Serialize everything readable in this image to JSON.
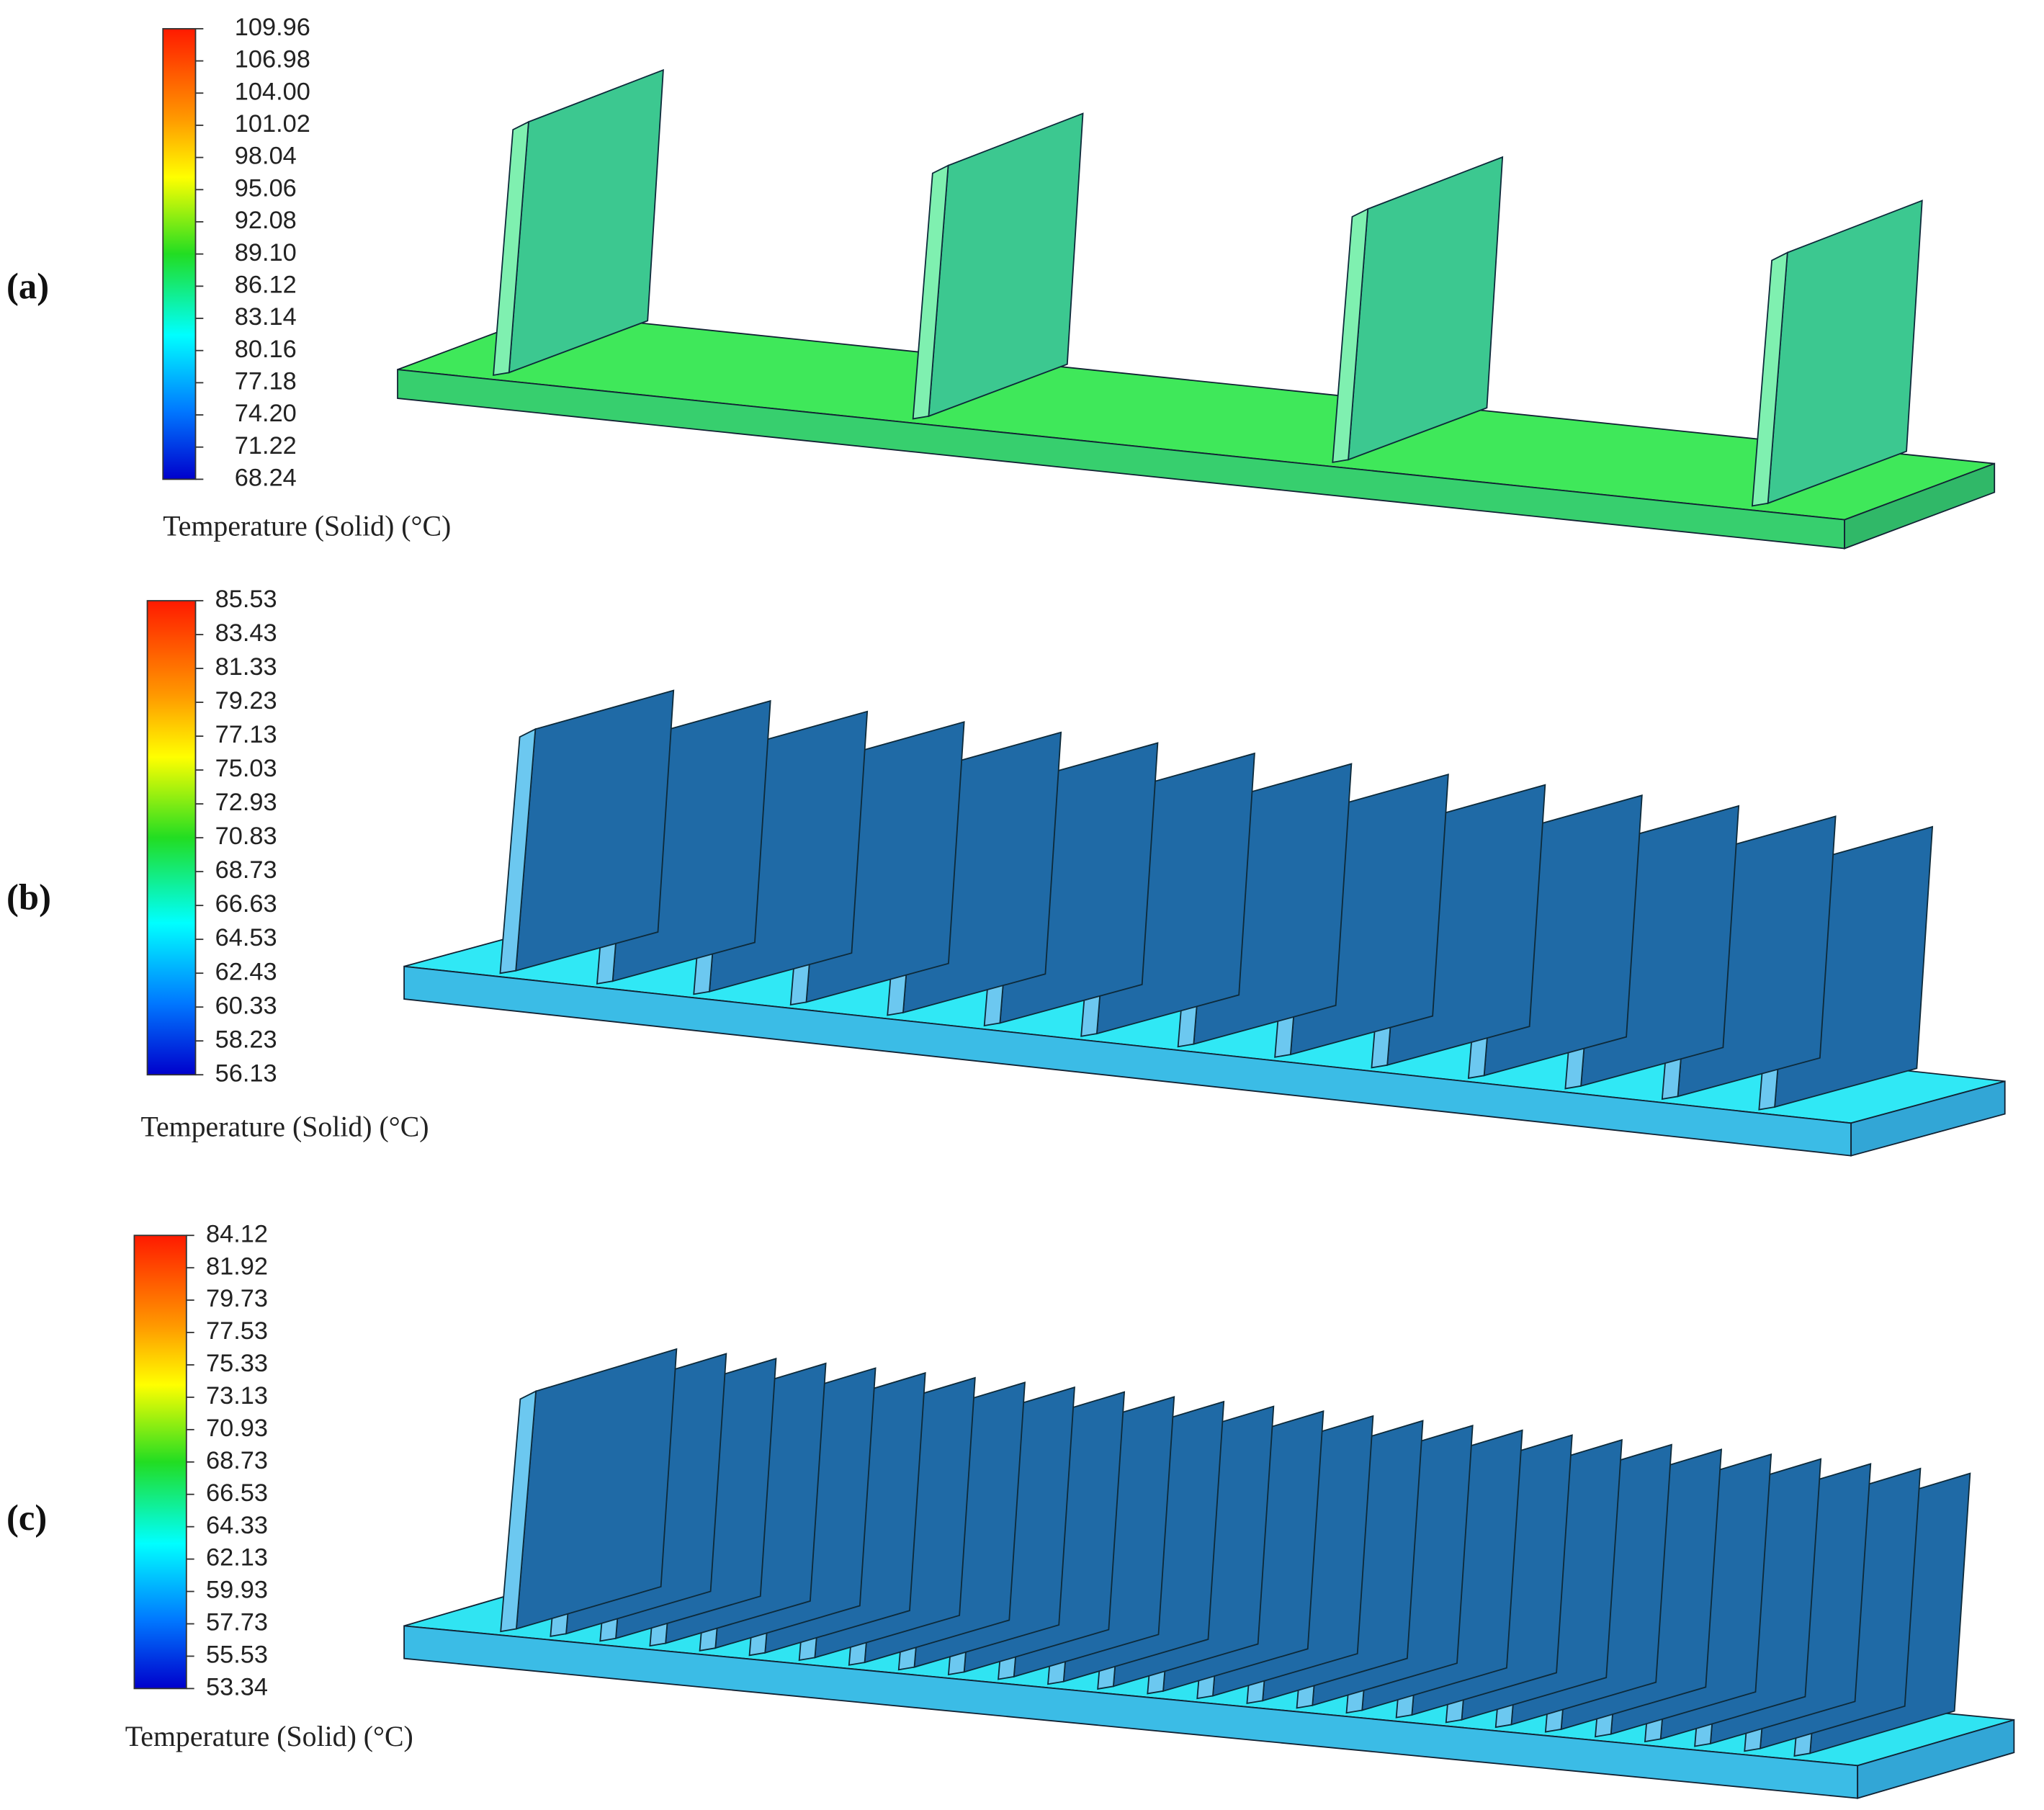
{
  "panels": [
    {
      "label": "(a)",
      "legend": {
        "title": "Temperature (Solid) (°C)",
        "ticks": [
          "109.96",
          "106.98",
          "104.00",
          "101.02",
          "98.04",
          "95.06",
          "92.08",
          "89.10",
          "86.12",
          "83.14",
          "80.16",
          "77.18",
          "74.20",
          "71.22",
          "68.24"
        ]
      }
    },
    {
      "label": "(b)",
      "legend": {
        "title": "Temperature (Solid) (°C)",
        "ticks": [
          "85.53",
          "83.43",
          "81.33",
          "79.23",
          "77.13",
          "75.03",
          "72.93",
          "70.83",
          "68.73",
          "66.63",
          "64.53",
          "62.43",
          "60.33",
          "58.23",
          "56.13"
        ]
      }
    },
    {
      "label": "(c)",
      "legend": {
        "title": "Temperature (Solid) (°C)",
        "ticks": [
          "84.12",
          "81.92",
          "79.73",
          "77.53",
          "75.33",
          "73.13",
          "70.93",
          "68.73",
          "66.53",
          "64.33",
          "62.13",
          "59.93",
          "57.73",
          "55.53",
          "53.34"
        ]
      }
    }
  ]
}
